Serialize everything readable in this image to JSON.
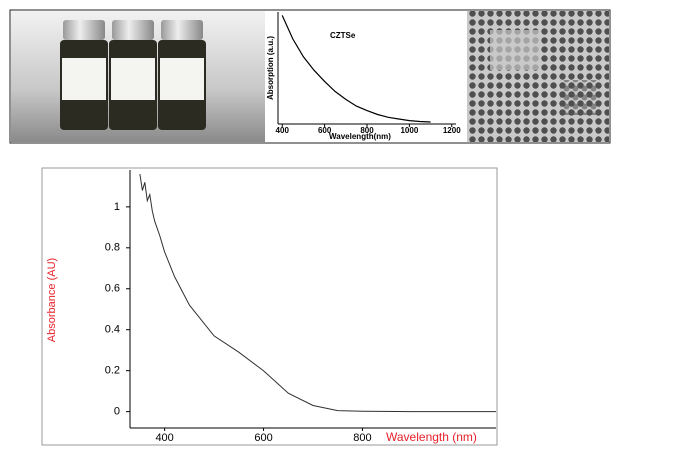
{
  "chart_data": [
    {
      "type": "line",
      "annotation": "CZTSe",
      "x_label": "Wavelength(nm)",
      "y_label": "Absorption (a.u.)",
      "x": [
        400,
        450,
        500,
        550,
        600,
        650,
        700,
        750,
        800,
        850,
        900,
        950,
        1000,
        1050,
        1100
      ],
      "series": [
        {
          "color": "#000000",
          "values": [
            0.97,
            0.76,
            0.6,
            0.48,
            0.38,
            0.29,
            0.22,
            0.16,
            0.12,
            0.085,
            0.06,
            0.045,
            0.03,
            0.022,
            0.018
          ]
        }
      ],
      "xlim": [
        380,
        1220
      ],
      "ylim": [
        0,
        1
      ],
      "xticks": [
        400,
        600,
        800,
        1000,
        1200
      ]
    },
    {
      "type": "line",
      "x_label": "Wavelength (nm)",
      "y_label": "Absorbance (AU)",
      "label_color": "#e8202a",
      "x": [
        350,
        355,
        360,
        365,
        370,
        375,
        380,
        390,
        400,
        420,
        450,
        500,
        550,
        600,
        650,
        700,
        750,
        800,
        900,
        1000,
        1070
      ],
      "series": [
        {
          "color": "#303030",
          "values": [
            1.16,
            1.08,
            1.12,
            1.03,
            1.06,
            0.98,
            0.93,
            0.86,
            0.78,
            0.66,
            0.52,
            0.37,
            0.29,
            0.2,
            0.09,
            0.03,
            0.005,
            0.002,
            0,
            0,
            0
          ]
        }
      ],
      "xlim": [
        330,
        1070
      ],
      "ylim": [
        -0.08,
        1.18
      ],
      "xticks": [
        400,
        600,
        800
      ],
      "yticks": [
        0,
        0.2,
        0.4,
        0.6,
        0.8,
        1
      ]
    }
  ]
}
